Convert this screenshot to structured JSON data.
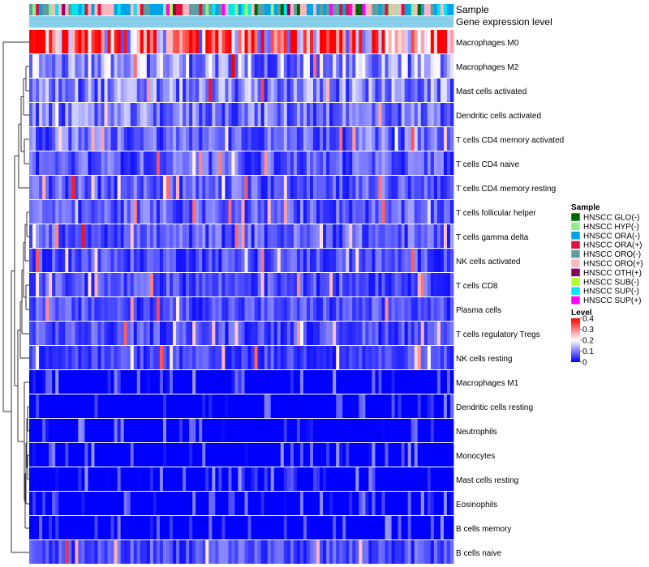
{
  "chart_data": {
    "type": "heatmap",
    "title": "",
    "annotation_tracks": [
      "Sample",
      "Gene expression level"
    ],
    "rows": [
      "Macrophages M0",
      "Macrophages M2",
      "Mast cells activated",
      "Dendritic cells activated",
      "T cells CD4 memory activated",
      "T cells CD4 naive",
      "T cells CD4 memory resting",
      "T cells follicular helper",
      "T cells gamma delta",
      "NK cells activated",
      "T cells CD8",
      "Plasma cells",
      "T cells regulatory  Tregs",
      "NK cells resting",
      "Macrophages M1",
      "Dendritic cells resting",
      "Neutrophils",
      "Monocytes",
      "Mast cells resting",
      "Eosinophils",
      "B cells memory",
      "B cells naive"
    ],
    "row_mean_levels": [
      0.28,
      0.12,
      0.1,
      0.09,
      0.08,
      0.07,
      0.07,
      0.07,
      0.07,
      0.06,
      0.06,
      0.06,
      0.06,
      0.05,
      0.03,
      0.02,
      0.02,
      0.02,
      0.02,
      0.02,
      0.02,
      0.06
    ],
    "n_samples": 130,
    "value_range": [
      0,
      0.4
    ],
    "color_scale": {
      "low": "#0000ff",
      "mid": "#ffffff",
      "high": "#ff0000",
      "mid_value": 0.2
    },
    "sample_legend": {
      "title": "Sample",
      "entries": [
        {
          "label": "HNSCC GLO(-)",
          "color": "#006400"
        },
        {
          "label": "HNSCC HYP(-)",
          "color": "#90ee90"
        },
        {
          "label": "HNSCC ORA(-)",
          "color": "#00a2e8"
        },
        {
          "label": "HNSCC ORA(+)",
          "color": "#dc143c"
        },
        {
          "label": "HNSCC ORO(-)",
          "color": "#5f9ea0"
        },
        {
          "label": "HNSCC ORO(+)",
          "color": "#ffb6c1"
        },
        {
          "label": "HNSCC OTH(+)",
          "color": "#8b0057"
        },
        {
          "label": "HNSCC SUB(-)",
          "color": "#adff2f"
        },
        {
          "label": "HNSCC SUP(-)",
          "color": "#00e5ee"
        },
        {
          "label": "HNSCC SUP(+)",
          "color": "#ff00ff"
        }
      ]
    },
    "level_legend": {
      "title": "Level",
      "ticks": [
        "0.4",
        "0.3",
        "0.2",
        "0.1",
        "0"
      ],
      "tick_values": [
        0.4,
        0.3,
        0.2,
        0.1,
        0
      ]
    }
  }
}
